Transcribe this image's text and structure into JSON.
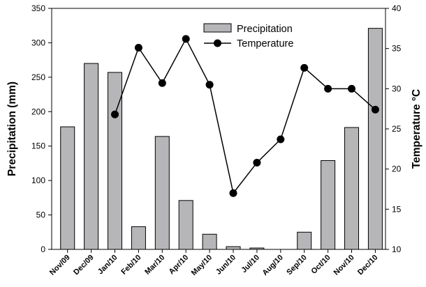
{
  "chart_data": {
    "type": "bar+line",
    "categories": [
      "Nov/09",
      "Dec/09",
      "Jan/10",
      "Feb/10",
      "Mar/10",
      "Apr/10",
      "May/10",
      "Jun/10",
      "Jul/10",
      "Aug/10",
      "Sep/10",
      "Oct/10",
      "Nov/10",
      "Dec/10"
    ],
    "series": [
      {
        "name": "Precipitation",
        "type": "bar",
        "axis": "left",
        "values": [
          178,
          270,
          257,
          33,
          164,
          71,
          22,
          4,
          2,
          0,
          25,
          129,
          177,
          321
        ]
      },
      {
        "name": "Temperature",
        "type": "line",
        "axis": "right",
        "values": [
          null,
          null,
          26.8,
          35.1,
          30.7,
          36.2,
          30.5,
          17.0,
          20.8,
          23.7,
          32.6,
          30.0,
          30.0,
          27.4
        ]
      }
    ],
    "left_axis": {
      "label": "Precipitation (mm)",
      "range": [
        0,
        350
      ],
      "ticks": [
        0,
        50,
        100,
        150,
        200,
        250,
        300,
        350
      ]
    },
    "right_axis": {
      "label": "Temperature °C",
      "range": [
        10,
        40
      ],
      "ticks": [
        10,
        15,
        20,
        25,
        30,
        35,
        40
      ]
    },
    "legend": {
      "placement": "top-center"
    },
    "grid": false,
    "colors": {
      "bar_fill": "#b6b6b9",
      "line": "#000000",
      "marker": "#000000"
    }
  }
}
